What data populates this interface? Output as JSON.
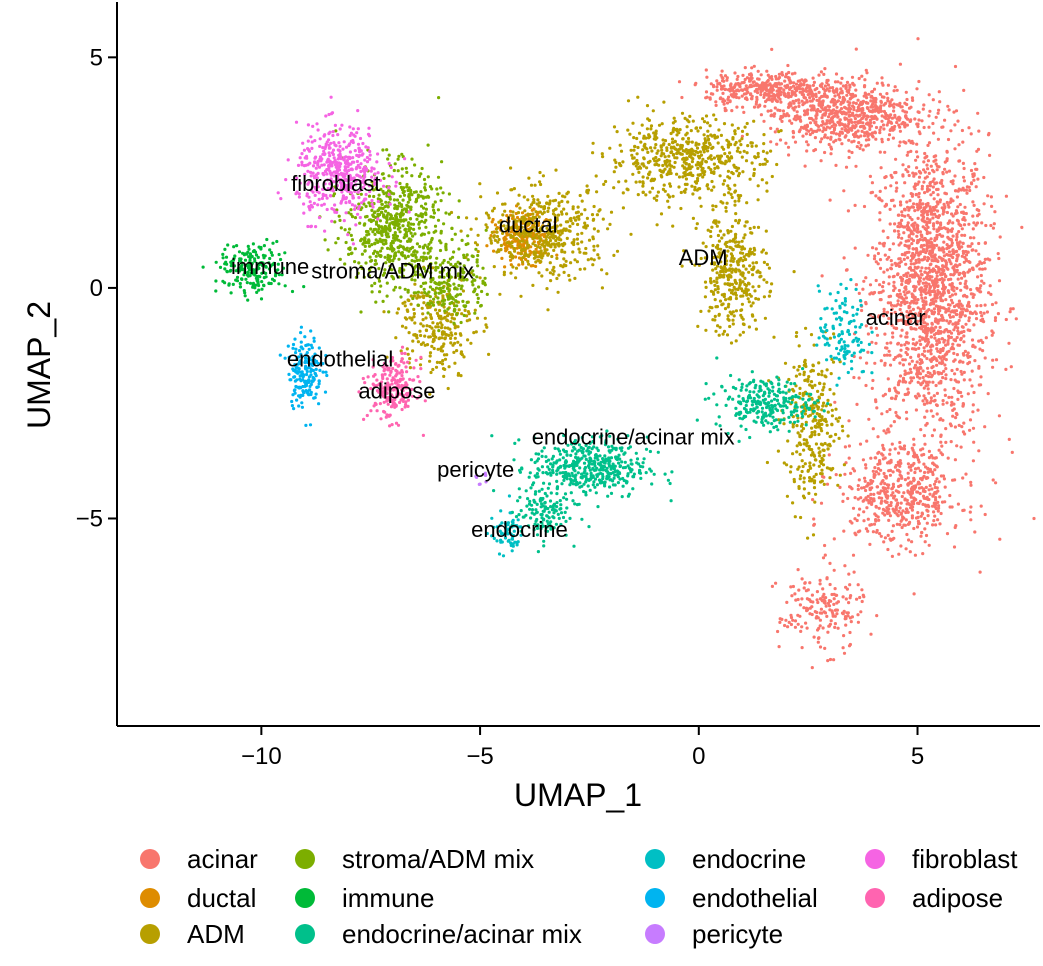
{
  "chart_data": {
    "type": "scatter",
    "xlabel": "UMAP_1",
    "ylabel": "UMAP_2",
    "xlim": [
      -13.3,
      7.8
    ],
    "ylim": [
      -9.5,
      6.2
    ],
    "xticks": [
      -10,
      -5,
      0,
      5
    ],
    "yticks": [
      -5,
      0,
      5
    ],
    "xtick_labels": [
      "−10",
      "−5",
      "0",
      "5"
    ],
    "ytick_labels": [
      "−5",
      "0",
      "5"
    ],
    "grid": false,
    "legend_position": "bottom",
    "series": [
      {
        "name": "acinar",
        "color": "#F8766D",
        "label": {
          "text": "acinar",
          "x": 4.5,
          "y": -0.8
        },
        "clusters": [
          {
            "cx": 5.3,
            "cy": 0.0,
            "sx": 1.2,
            "sy": 3.0,
            "n": 1800
          },
          {
            "cx": 3.3,
            "cy": 3.8,
            "sx": 1.5,
            "sy": 0.7,
            "n": 700
          },
          {
            "cx": 1.5,
            "cy": 4.3,
            "sx": 1.2,
            "sy": 0.35,
            "n": 350
          },
          {
            "cx": 4.6,
            "cy": -4.5,
            "sx": 1.3,
            "sy": 1.0,
            "n": 500
          },
          {
            "cx": 2.8,
            "cy": -7.0,
            "sx": 0.9,
            "sy": 0.8,
            "n": 180
          }
        ]
      },
      {
        "name": "ductal",
        "color": "#DE8C00",
        "label": {
          "text": "ductal",
          "x": -3.9,
          "y": 1.2
        },
        "clusters": [
          {
            "cx": -4.0,
            "cy": 1.1,
            "sx": 0.6,
            "sy": 0.5,
            "n": 220
          }
        ]
      },
      {
        "name": "ADM",
        "color": "#B79F00",
        "label": {
          "text": "ADM",
          "x": 0.1,
          "y": 0.5
        },
        "clusters": [
          {
            "cx": -0.3,
            "cy": 2.8,
            "sx": 1.6,
            "sy": 0.8,
            "n": 550
          },
          {
            "cx": -3.5,
            "cy": 1.2,
            "sx": 1.3,
            "sy": 0.9,
            "n": 450
          },
          {
            "cx": 0.8,
            "cy": 0.3,
            "sx": 0.7,
            "sy": 1.2,
            "n": 350
          },
          {
            "cx": 2.6,
            "cy": -3.0,
            "sx": 0.6,
            "sy": 1.5,
            "n": 300
          },
          {
            "cx": -6.0,
            "cy": -0.8,
            "sx": 0.8,
            "sy": 1.0,
            "n": 250
          }
        ]
      },
      {
        "name": "stroma/ADM mix",
        "color": "#7CAE00",
        "label": {
          "text": "stroma/ADM mix",
          "x": -7.0,
          "y": 0.2
        },
        "clusters": [
          {
            "cx": -7.0,
            "cy": 1.3,
            "sx": 1.0,
            "sy": 1.2,
            "n": 600
          },
          {
            "cx": -5.6,
            "cy": 0.2,
            "sx": 0.7,
            "sy": 0.8,
            "n": 200
          }
        ]
      },
      {
        "name": "immune",
        "color": "#00BA38",
        "label": {
          "text": "immune",
          "x": -9.8,
          "y": 0.3
        },
        "clusters": [
          {
            "cx": -10.2,
            "cy": 0.4,
            "sx": 0.7,
            "sy": 0.5,
            "n": 200
          }
        ]
      },
      {
        "name": "endocrine/acinar mix",
        "color": "#00C08B",
        "label": {
          "text": "endocrine/acinar mix",
          "x": -1.5,
          "y": -3.4
        },
        "clusters": [
          {
            "cx": -2.5,
            "cy": -3.9,
            "sx": 1.2,
            "sy": 0.6,
            "n": 450
          },
          {
            "cx": 1.5,
            "cy": -2.5,
            "sx": 1.0,
            "sy": 0.5,
            "n": 250
          },
          {
            "cx": -3.6,
            "cy": -4.9,
            "sx": 0.6,
            "sy": 0.5,
            "n": 120
          }
        ]
      },
      {
        "name": "endocrine",
        "color": "#00BFC4",
        "label": {
          "text": "endocrine",
          "x": -4.1,
          "y": -5.4
        },
        "clusters": [
          {
            "cx": -4.4,
            "cy": -5.3,
            "sx": 0.35,
            "sy": 0.4,
            "n": 60
          },
          {
            "cx": 3.3,
            "cy": -1.0,
            "sx": 0.5,
            "sy": 0.9,
            "n": 120
          }
        ]
      },
      {
        "name": "endothelial",
        "color": "#00B4F0",
        "label": {
          "text": "endothelial",
          "x": -8.2,
          "y": -1.7
        },
        "clusters": [
          {
            "cx": -9.0,
            "cy": -1.8,
            "sx": 0.35,
            "sy": 0.7,
            "n": 180
          }
        ]
      },
      {
        "name": "pericyte",
        "color": "#C77CFF",
        "label": {
          "text": "pericyte",
          "x": -5.1,
          "y": -4.1
        },
        "clusters": [
          {
            "cx": -5.0,
            "cy": -4.1,
            "sx": 0.15,
            "sy": 0.15,
            "n": 8
          }
        ]
      },
      {
        "name": "fibroblast",
        "color": "#F564E3",
        "label": {
          "text": "fibroblast",
          "x": -8.3,
          "y": 2.1
        },
        "clusters": [
          {
            "cx": -8.2,
            "cy": 2.5,
            "sx": 0.9,
            "sy": 0.9,
            "n": 450
          }
        ]
      },
      {
        "name": "adipose",
        "color": "#FF64B0",
        "label": {
          "text": "adipose",
          "x": -6.9,
          "y": -2.4
        },
        "clusters": [
          {
            "cx": -7.0,
            "cy": -2.2,
            "sx": 0.5,
            "sy": 0.6,
            "n": 220
          }
        ]
      }
    ]
  }
}
